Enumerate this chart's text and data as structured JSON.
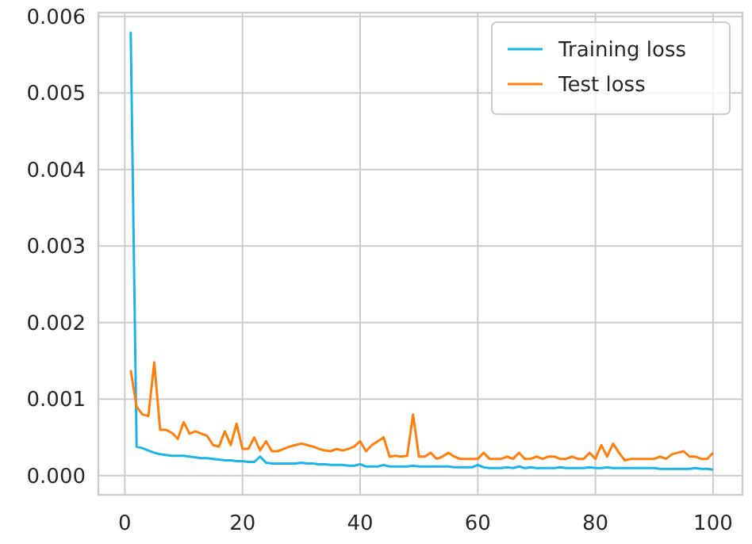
{
  "chart_data": {
    "type": "line",
    "x": [
      1,
      2,
      3,
      4,
      5,
      6,
      7,
      8,
      9,
      10,
      11,
      12,
      13,
      14,
      15,
      16,
      17,
      18,
      19,
      20,
      21,
      22,
      23,
      24,
      25,
      26,
      27,
      28,
      29,
      30,
      31,
      32,
      33,
      34,
      35,
      36,
      37,
      38,
      39,
      40,
      41,
      42,
      43,
      44,
      45,
      46,
      47,
      48,
      49,
      50,
      51,
      52,
      53,
      54,
      55,
      56,
      57,
      58,
      59,
      60,
      61,
      62,
      63,
      64,
      65,
      66,
      67,
      68,
      69,
      70,
      71,
      72,
      73,
      74,
      75,
      76,
      77,
      78,
      79,
      80,
      81,
      82,
      83,
      84,
      85,
      86,
      87,
      88,
      89,
      90,
      91,
      92,
      93,
      94,
      95,
      96,
      97,
      98,
      99,
      100
    ],
    "series": [
      {
        "name": "Training loss",
        "color": "#1cb4e8",
        "values": [
          0.0058,
          0.00038,
          0.00036,
          0.00033,
          0.0003,
          0.00028,
          0.00027,
          0.00026,
          0.00026,
          0.00026,
          0.00025,
          0.00024,
          0.00023,
          0.00023,
          0.00022,
          0.00021,
          0.0002,
          0.0002,
          0.00019,
          0.00019,
          0.00018,
          0.00018,
          0.00025,
          0.00017,
          0.00016,
          0.00016,
          0.00016,
          0.00016,
          0.00016,
          0.00017,
          0.00016,
          0.00016,
          0.00015,
          0.00015,
          0.00014,
          0.00014,
          0.00014,
          0.00013,
          0.00013,
          0.00015,
          0.00012,
          0.00012,
          0.00012,
          0.00014,
          0.00012,
          0.00012,
          0.00012,
          0.00012,
          0.00013,
          0.00012,
          0.00012,
          0.00012,
          0.00012,
          0.00012,
          0.00012,
          0.00011,
          0.00011,
          0.00011,
          0.00011,
          0.00014,
          0.00011,
          0.0001,
          0.0001,
          0.0001,
          0.00011,
          0.0001,
          0.00012,
          0.0001,
          0.00011,
          0.0001,
          0.0001,
          0.0001,
          0.0001,
          0.00011,
          0.0001,
          0.0001,
          0.0001,
          0.0001,
          0.00011,
          0.0001,
          0.0001,
          0.00011,
          0.0001,
          0.0001,
          0.0001,
          0.0001,
          0.0001,
          0.0001,
          0.0001,
          0.0001,
          9e-05,
          9e-05,
          9e-05,
          9e-05,
          9e-05,
          9e-05,
          0.0001,
          9e-05,
          9e-05,
          8e-05
        ]
      },
      {
        "name": "Test loss",
        "color": "#ff7f0e",
        "values": [
          0.00138,
          0.0009,
          0.0008,
          0.00078,
          0.00148,
          0.0006,
          0.0006,
          0.00056,
          0.00048,
          0.0007,
          0.00055,
          0.00058,
          0.00055,
          0.00052,
          0.0004,
          0.00038,
          0.00058,
          0.0004,
          0.00068,
          0.00035,
          0.00035,
          0.0005,
          0.00033,
          0.00045,
          0.00032,
          0.00032,
          0.00035,
          0.00038,
          0.0004,
          0.00042,
          0.0004,
          0.00038,
          0.00035,
          0.00033,
          0.00032,
          0.00035,
          0.00033,
          0.00035,
          0.00038,
          0.00045,
          0.00032,
          0.0004,
          0.00045,
          0.0005,
          0.00025,
          0.00026,
          0.00025,
          0.00026,
          0.0008,
          0.00025,
          0.00025,
          0.0003,
          0.00022,
          0.00025,
          0.0003,
          0.00025,
          0.00022,
          0.00022,
          0.00022,
          0.00022,
          0.0003,
          0.00022,
          0.00022,
          0.00022,
          0.00025,
          0.00022,
          0.0003,
          0.00022,
          0.00022,
          0.00025,
          0.00022,
          0.00025,
          0.00025,
          0.00022,
          0.00022,
          0.00025,
          0.00022,
          0.00022,
          0.0003,
          0.00022,
          0.0004,
          0.00025,
          0.00042,
          0.0003,
          0.0002,
          0.00022,
          0.00022,
          0.00022,
          0.00022,
          0.00022,
          0.00025,
          0.00022,
          0.00028,
          0.0003,
          0.00032,
          0.00025,
          0.00025,
          0.00022,
          0.00022,
          0.0003
        ]
      }
    ],
    "xlim": [
      -4.5,
      105
    ],
    "xticks": [
      0,
      20,
      40,
      60,
      80,
      100
    ],
    "ylim": [
      -0.00025,
      0.00605
    ],
    "yticks": [
      {
        "value": 0,
        "label": "0.000"
      },
      {
        "value": 0.001,
        "label": "0.001"
      },
      {
        "value": 0.002,
        "label": "0.002"
      },
      {
        "value": 0.003,
        "label": "0.003"
      },
      {
        "value": 0.004,
        "label": "0.004"
      },
      {
        "value": 0.005,
        "label": "0.005"
      },
      {
        "value": 0.006,
        "label": "0.006"
      }
    ],
    "grid": true,
    "legend": "top right"
  }
}
